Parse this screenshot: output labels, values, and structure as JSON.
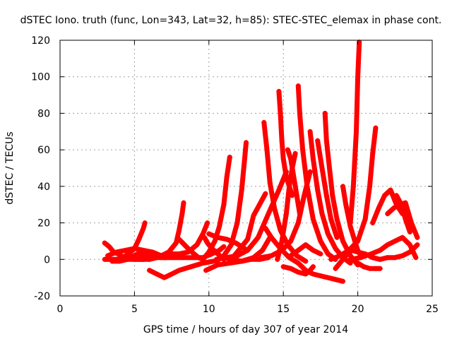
{
  "chart_data": {
    "type": "scatter",
    "title": "dSTEC Iono. truth (func, Lon=343, Lat=32, h=85): STEC-STEC_elemax in phase cont.",
    "xlabel": "GPS time / hours of day 307 of year 2014",
    "ylabel": "dSTEC  / TECUs",
    "xlim": [
      0,
      25
    ],
    "ylim": [
      -20,
      120
    ],
    "xticks": [
      0,
      5,
      10,
      15,
      20,
      25
    ],
    "yticks": [
      -20,
      0,
      20,
      40,
      60,
      80,
      100,
      120
    ],
    "grid": true,
    "marker": "+",
    "color": "#ff0000",
    "series": [
      {
        "x": [
          3.0,
          3.4,
          3.8,
          4.2,
          4.6,
          5.0,
          5.3,
          5.6,
          5.7
        ],
        "y": [
          0,
          0,
          0,
          1,
          3,
          6,
          11,
          17,
          20
        ]
      },
      {
        "x": [
          3.0,
          3.3,
          3.6,
          3.9,
          4.3,
          4.8,
          5.3,
          5.8,
          6.3
        ],
        "y": [
          9,
          7,
          4,
          3,
          1,
          1,
          1,
          2,
          3
        ]
      },
      {
        "x": [
          3.2,
          3.8,
          4.4,
          5.0,
          5.6,
          6.2,
          6.8,
          7.1
        ],
        "y": [
          2,
          4,
          5,
          6,
          5,
          4,
          2,
          1
        ]
      },
      {
        "x": [
          3.5,
          4.0,
          4.5,
          5.0,
          5.5,
          6.0,
          6.5,
          7.0
        ],
        "y": [
          -1,
          -1,
          0,
          0,
          0,
          0,
          1,
          1
        ]
      },
      {
        "x": [
          4.5,
          5.2,
          5.8,
          6.4,
          6.8
        ],
        "y": [
          0,
          3,
          4,
          3,
          1
        ]
      },
      {
        "x": [
          5.0,
          5.6,
          6.2,
          6.8,
          7.3,
          7.8,
          8.0,
          8.2,
          8.3
        ],
        "y": [
          0,
          0,
          1,
          2,
          4,
          9,
          16,
          25,
          31
        ]
      },
      {
        "x": [
          6.5,
          7.0,
          7.5,
          8.0,
          8.6,
          9.2,
          9.6,
          9.9
        ],
        "y": [
          1,
          2,
          3,
          3,
          4,
          8,
          14,
          20
        ]
      },
      {
        "x": [
          6.0,
          6.5,
          7.0,
          7.5,
          8.0,
          8.8,
          9.6,
          10.3
        ],
        "y": [
          -6,
          -8,
          -10,
          -8,
          -6,
          -4,
          -2,
          -1
        ]
      },
      {
        "x": [
          7.0,
          7.6,
          8.3,
          9.0,
          9.6,
          10.2,
          10.7,
          11.0
        ],
        "y": [
          1,
          1,
          1,
          1,
          1,
          3,
          5,
          7
        ]
      },
      {
        "x": [
          8.0,
          8.6,
          9.0,
          9.3,
          9.6
        ],
        "y": [
          11,
          6,
          3,
          1,
          0
        ]
      },
      {
        "x": [
          9.6,
          10.0,
          10.4,
          10.7,
          11.0,
          11.2,
          11.4
        ],
        "y": [
          0,
          4,
          10,
          18,
          30,
          45,
          56
        ]
      },
      {
        "x": [
          9.7,
          9.9,
          10.2,
          10.6,
          11.0
        ],
        "y": [
          12,
          9,
          6,
          3,
          0
        ]
      },
      {
        "x": [
          10.5,
          11.0,
          11.5,
          11.9,
          12.2,
          12.4,
          12.5
        ],
        "y": [
          -1,
          2,
          8,
          20,
          38,
          55,
          64
        ]
      },
      {
        "x": [
          9.8,
          10.6,
          11.4,
          12.2,
          13.0,
          13.6,
          14.1
        ],
        "y": [
          -6,
          -3,
          -2,
          -1,
          1,
          5,
          12
        ]
      },
      {
        "x": [
          10.0,
          10.6,
          11.2,
          11.8,
          12.4
        ],
        "y": [
          14,
          12,
          11,
          9,
          6
        ]
      },
      {
        "x": [
          10.5,
          11.2,
          11.9,
          12.6,
          13.3,
          14.0,
          14.7,
          15.2
        ],
        "y": [
          0,
          1,
          2,
          5,
          12,
          25,
          38,
          48
        ]
      },
      {
        "x": [
          11.0,
          11.6,
          12.2,
          12.8,
          13.4,
          14.0
        ],
        "y": [
          1,
          0,
          -1,
          0,
          0,
          1
        ]
      },
      {
        "x": [
          11.5,
          12.0,
          12.6,
          13.0,
          13.4,
          13.8
        ],
        "y": [
          0,
          5,
          11,
          24,
          30,
          36
        ]
      },
      {
        "x": [
          13.7,
          13.9,
          14.1,
          14.4,
          14.8,
          15.3,
          15.9,
          16.5
        ],
        "y": [
          75,
          60,
          42,
          28,
          16,
          8,
          2,
          -1
        ]
      },
      {
        "x": [
          13.8,
          14.2,
          14.8,
          15.4,
          16.0,
          16.5
        ],
        "y": [
          17,
          12,
          6,
          1,
          -2,
          -6
        ]
      },
      {
        "x": [
          13.5,
          14.2,
          14.9,
          15.5,
          16.0,
          16.4,
          16.8
        ],
        "y": [
          1,
          2,
          5,
          10,
          20,
          35,
          48
        ]
      },
      {
        "x": [
          14.7,
          14.8,
          14.9,
          15.0,
          15.1,
          15.2,
          15.4,
          15.6
        ],
        "y": [
          92,
          80,
          65,
          55,
          50,
          45,
          40,
          35
        ]
      },
      {
        "x": [
          14.6,
          14.9,
          15.2,
          15.4,
          15.6,
          15.8
        ],
        "y": [
          0,
          10,
          25,
          40,
          50,
          58
        ]
      },
      {
        "x": [
          15.3,
          15.5,
          15.7,
          15.9,
          16.1
        ],
        "y": [
          60,
          55,
          45,
          35,
          25
        ]
      },
      {
        "x": [
          16.0,
          16.1,
          16.3,
          16.6,
          17.0,
          17.5,
          18.0,
          18.5
        ],
        "y": [
          95,
          80,
          60,
          40,
          22,
          10,
          3,
          0
        ]
      },
      {
        "x": [
          15.0,
          15.5,
          16.0,
          16.5,
          16.8,
          17.0
        ],
        "y": [
          -4,
          -5,
          -7,
          -8,
          -6,
          -4
        ]
      },
      {
        "x": [
          16.8,
          17.0,
          17.3,
          17.6,
          18.0,
          18.5,
          19.0,
          19.5
        ],
        "y": [
          70,
          55,
          38,
          25,
          14,
          6,
          1,
          -2
        ]
      },
      {
        "x": [
          17.3,
          17.6,
          17.9,
          18.2,
          18.6
        ],
        "y": [
          65,
          50,
          35,
          22,
          12
        ]
      },
      {
        "x": [
          17.8,
          17.9,
          18.1,
          18.3,
          18.6,
          19.0,
          19.5,
          20.0
        ],
        "y": [
          80,
          65,
          50,
          35,
          22,
          10,
          2,
          -3
        ]
      },
      {
        "x": [
          15.5,
          16.0,
          16.5,
          17.0,
          17.5
        ],
        "y": [
          2,
          5,
          8,
          5,
          3
        ]
      },
      {
        "x": [
          16.5,
          17.0,
          17.5,
          18.0,
          18.5,
          19.0
        ],
        "y": [
          -6,
          -8,
          -9,
          -10,
          -11,
          -12
        ]
      },
      {
        "x": [
          18.5,
          18.8,
          19.2,
          19.6,
          20.0,
          20.5,
          21.0,
          21.5
        ],
        "y": [
          -5,
          -2,
          2,
          5,
          4,
          3,
          1,
          0
        ]
      },
      {
        "x": [
          18.2,
          18.8,
          19.4,
          20.0,
          20.5,
          20.8,
          21.0,
          21.2
        ],
        "y": [
          0,
          2,
          5,
          10,
          22,
          40,
          58,
          72
        ]
      },
      {
        "x": [
          19.0,
          19.2,
          19.5,
          19.8,
          20.0,
          20.2
        ],
        "y": [
          40,
          30,
          18,
          10,
          5,
          2
        ]
      },
      {
        "x": [
          19.5,
          19.7,
          19.9,
          20.0,
          20.1
        ],
        "y": [
          20,
          40,
          70,
          100,
          119
        ]
      },
      {
        "x": [
          20.0,
          20.4,
          20.8,
          21.2,
          21.5
        ],
        "y": [
          -2,
          -4,
          -5,
          -5,
          -5
        ]
      },
      {
        "x": [
          19.5,
          20.2,
          20.9,
          21.5,
          22.0,
          22.5,
          23.0,
          23.5,
          23.9
        ],
        "y": [
          0,
          1,
          3,
          5,
          8,
          10,
          12,
          8,
          1
        ]
      },
      {
        "x": [
          21.0,
          21.4,
          21.8,
          22.2,
          22.6,
          23.0
        ],
        "y": [
          20,
          28,
          35,
          38,
          30,
          25
        ]
      },
      {
        "x": [
          22.0,
          22.4,
          22.8,
          23.2,
          23.6,
          24.0
        ],
        "y": [
          25,
          28,
          30,
          31,
          20,
          12
        ]
      },
      {
        "x": [
          22.6,
          22.8,
          23.0,
          23.2,
          23.5
        ],
        "y": [
          35,
          32,
          28,
          22,
          15
        ]
      },
      {
        "x": [
          21.5,
          22.0,
          22.5,
          23.0,
          23.5,
          24.0
        ],
        "y": [
          0,
          1,
          1,
          2,
          4,
          8
        ]
      }
    ]
  }
}
